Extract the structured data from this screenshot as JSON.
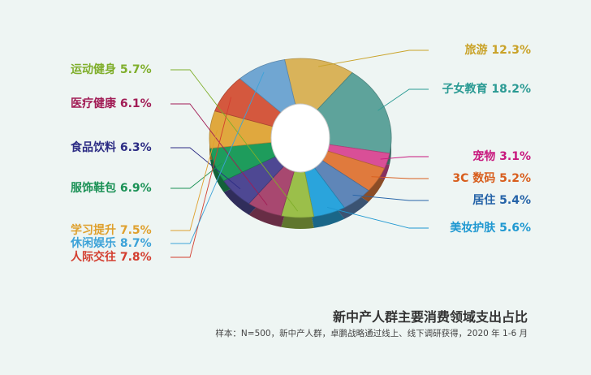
{
  "chart_data": {
    "type": "pie",
    "title": "新中产人群主要消费领域支出占比",
    "note": "样本：N=500，新中产人群，卓鹏战略通过线上、线下调研获得，2020 年 1-6 月",
    "unit": "%",
    "slices": [
      {
        "label": "旅游",
        "value": 12.3,
        "text": "旅游 12.3%",
        "color": "#d9b35a",
        "label_color": "#c9a227"
      },
      {
        "label": "子女教育",
        "value": 18.2,
        "text": "子女教育 18.2%",
        "color": "#5ea39b",
        "label_color": "#2a9a93"
      },
      {
        "label": "宠物",
        "value": 3.1,
        "text": "宠物 3.1%",
        "color": "#d94f97",
        "label_color": "#c8187e"
      },
      {
        "label": "3C 数码",
        "value": 5.2,
        "text": "3C 数码 5.2%",
        "color": "#e07a3d",
        "label_color": "#d85d1c"
      },
      {
        "label": "居住",
        "value": 5.4,
        "text": "居住 5.4%",
        "color": "#5f86b8",
        "label_color": "#2563a8"
      },
      {
        "label": "美妆护肤",
        "value": 5.6,
        "text": "美妆护肤 5.6%",
        "color": "#2aa4dc",
        "label_color": "#1f98d1"
      },
      {
        "label": "运动健身",
        "value": 5.7,
        "text": "运动健身 5.7%",
        "color": "#9bbf4a",
        "label_color": "#7fae2a"
      },
      {
        "label": "医疗健康",
        "value": 6.1,
        "text": "医疗健康 6.1%",
        "color": "#a84870",
        "label_color": "#a11c55"
      },
      {
        "label": "食品饮料",
        "value": 6.3,
        "text": "食品饮料 6.3%",
        "color": "#4e4893",
        "label_color": "#2c2c84"
      },
      {
        "label": "服饰鞋包",
        "value": 6.9,
        "text": "服饰鞋包 6.9%",
        "color": "#1e9c5c",
        "label_color": "#1a9155"
      },
      {
        "label": "学习提升",
        "value": 7.5,
        "text": "学习提升 7.5%",
        "color": "#e0a83e",
        "label_color": "#dfa02d"
      },
      {
        "label": "人际交往",
        "value": 7.8,
        "text": "人际交往 7.8%",
        "color": "#d4583e",
        "label_color": "#d33d2e"
      },
      {
        "label": "休闲娱乐",
        "value": 8.7,
        "text": "休闲娱乐 8.7%",
        "color": "#70a6d2",
        "label_color": "#3ca2d8"
      }
    ]
  }
}
